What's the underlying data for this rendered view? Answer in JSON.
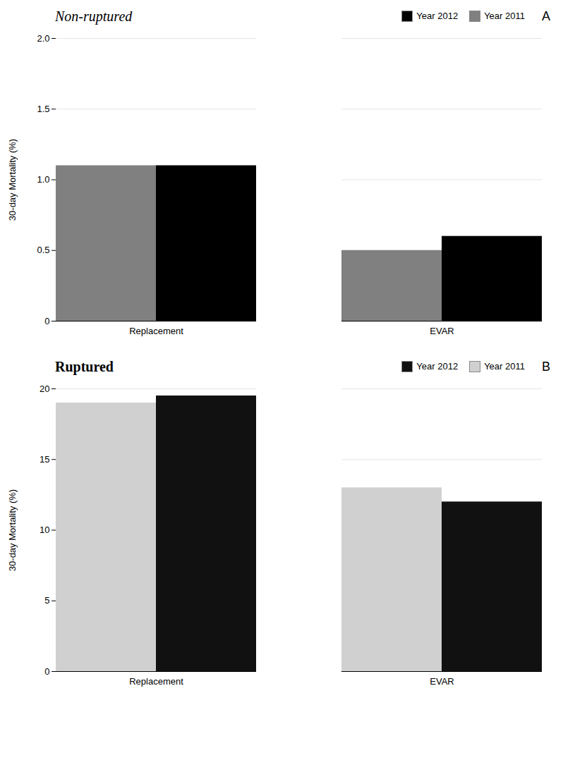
{
  "chart_data": [
    {
      "type": "bar",
      "title": "Non-ruptured",
      "categories": [
        "Replacement",
        "EVAR"
      ],
      "series": [
        {
          "name": "Year 2011",
          "color": "#808080",
          "values": [
            1.1,
            0.5
          ]
        },
        {
          "name": "Year 2012",
          "color": "#000000",
          "values": [
            1.1,
            0.6
          ]
        }
      ],
      "ylabel": "30-day Mortality (%)",
      "ylim": [
        0,
        2.0
      ],
      "yticks": [
        0,
        0.5,
        {
          "value": 1,
          "label": "1.0"
        },
        1.5,
        {
          "value": 2,
          "label": "2.0"
        }
      ],
      "grid": true,
      "legend": "upper right",
      "annotations": [
        "A"
      ]
    },
    {
      "type": "bar",
      "title": "Ruptured",
      "categories": [
        "Replacement",
        "EVAR"
      ],
      "series": [
        {
          "name": "Year 2011",
          "color": "#d0d0d0",
          "values": [
            19.0,
            13.0
          ]
        },
        {
          "name": "Year 2012",
          "color": "#111111",
          "values": [
            19.5,
            12.0
          ]
        }
      ],
      "ylabel": "30-day Mortality (%)",
      "ylim": [
        0,
        20
      ],
      "yticks": [
        0,
        5,
        10,
        15,
        20
      ],
      "grid": true,
      "legend": "upper right",
      "annotations": [
        "B"
      ]
    }
  ]
}
